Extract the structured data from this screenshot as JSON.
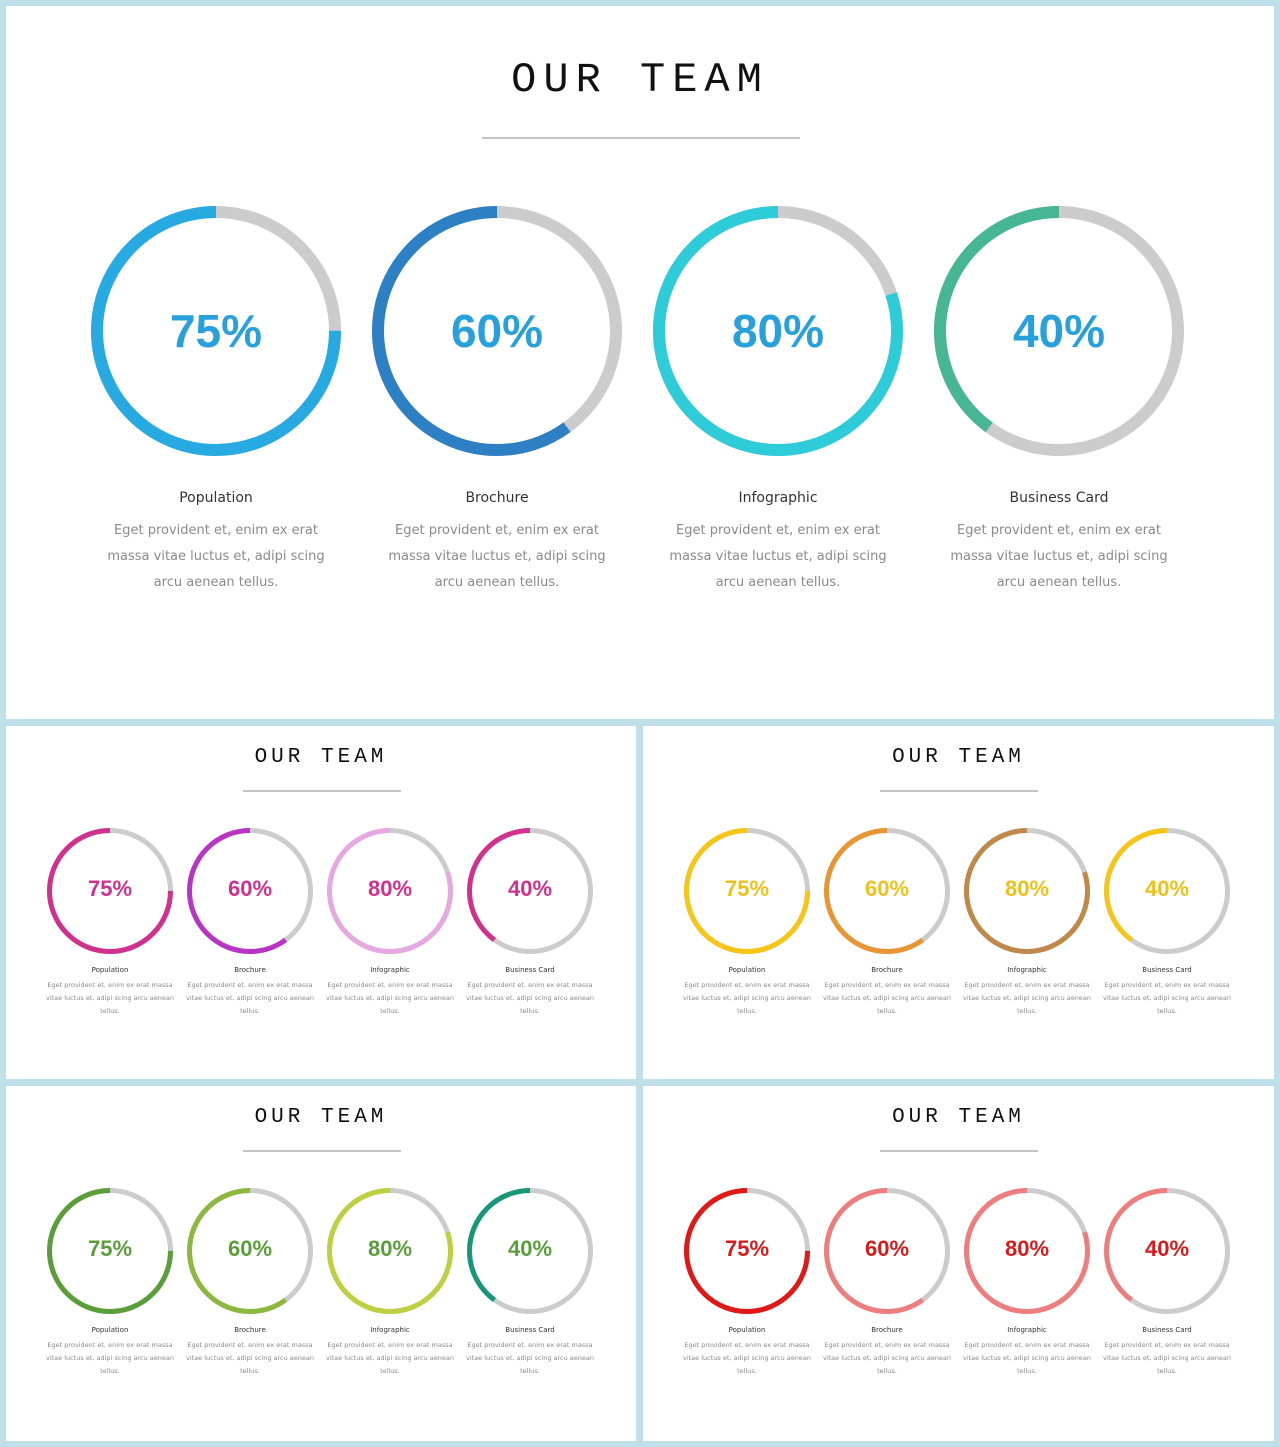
{
  "chart_data": [
    {
      "type": "donut",
      "title": "OUR TEAM",
      "items": [
        {
          "label": "Population",
          "value": 75,
          "value_text": "75%",
          "description": "Eget provident et, enim ex erat massa vitae luctus et, adipi scing arcu aenean tellus.",
          "color": "#27aae1"
        },
        {
          "label": "Brochure",
          "value": 60,
          "value_text": "60%",
          "description": "Eget provident et, enim ex erat massa vitae luctus et, adipi scing arcu aenean tellus.",
          "color": "#2e80c4"
        },
        {
          "label": "Infographic",
          "value": 80,
          "value_text": "80%",
          "description": "Eget provident et, enim ex erat massa vitae luctus et, adipi scing arcu aenean tellus.",
          "color": "#2ecbd9"
        },
        {
          "label": "Business Card",
          "value": 40,
          "value_text": "40%",
          "description": "Eget provident et, enim ex erat massa vitae luctus et, adipi scing arcu aenean tellus.",
          "color": "#47b693"
        }
      ],
      "value_text_color": "#27a0dc",
      "track_color": "#cccccc"
    },
    {
      "type": "donut",
      "title": "OUR TEAM",
      "items": [
        {
          "label": "Population",
          "value": 75,
          "value_text": "75%",
          "description": "Eget provident et, enim ex erat massa vitae luctus et, adipi scing arcu aenean tellus.",
          "color": "#d0308e"
        },
        {
          "label": "Brochure",
          "value": 60,
          "value_text": "60%",
          "description": "Eget provident et, enim ex erat massa vitae luctus et, adipi scing arcu aenean tellus.",
          "color": "#b934c4"
        },
        {
          "label": "Infographic",
          "value": 80,
          "value_text": "80%",
          "description": "Eget provident et, enim ex erat massa vitae luctus et, adipi scing arcu aenean tellus.",
          "color": "#e6a8e2"
        },
        {
          "label": "Business Card",
          "value": 40,
          "value_text": "40%",
          "description": "Eget provident et, enim ex erat massa vitae luctus et, adipi scing arcu aenean tellus.",
          "color": "#d0308e"
        }
      ],
      "value_text_color": "#d0308e",
      "track_color": "#cccccc"
    },
    {
      "type": "donut",
      "title": "OUR TEAM",
      "items": [
        {
          "label": "Population",
          "value": 75,
          "value_text": "75%",
          "description": "Eget provident et, enim ex erat massa vitae luctus et, adipi scing arcu aenean tellus.",
          "color": "#f5c518"
        },
        {
          "label": "Brochure",
          "value": 60,
          "value_text": "60%",
          "description": "Eget provident et, enim ex erat massa vitae luctus et, adipi scing arcu aenean tellus.",
          "color": "#ea9533"
        },
        {
          "label": "Infographic",
          "value": 80,
          "value_text": "80%",
          "description": "Eget provident et, enim ex erat massa vitae luctus et, adipi scing arcu aenean tellus.",
          "color": "#c0894a"
        },
        {
          "label": "Business Card",
          "value": 40,
          "value_text": "40%",
          "description": "Eget provident et, enim ex erat massa vitae luctus et, adipi scing arcu aenean tellus.",
          "color": "#f5c518"
        }
      ],
      "value_text_color": "#f0c01a",
      "track_color": "#cccccc"
    },
    {
      "type": "donut",
      "title": "OUR TEAM",
      "items": [
        {
          "label": "Population",
          "value": 75,
          "value_text": "75%",
          "description": "Eget provident et, enim ex erat massa vitae luctus et, adipi scing arcu aenean tellus.",
          "color": "#5a9e3a"
        },
        {
          "label": "Brochure",
          "value": 60,
          "value_text": "60%",
          "description": "Eget provident et, enim ex erat massa vitae luctus et, adipi scing arcu aenean tellus.",
          "color": "#8cb83e"
        },
        {
          "label": "Infographic",
          "value": 80,
          "value_text": "80%",
          "description": "Eget provident et, enim ex erat massa vitae luctus et, adipi scing arcu aenean tellus.",
          "color": "#bed03f"
        },
        {
          "label": "Business Card",
          "value": 40,
          "value_text": "40%",
          "description": "Eget provident et, enim ex erat massa vitae luctus et, adipi scing arcu aenean tellus.",
          "color": "#16967a"
        }
      ],
      "value_text_color": "#5a9e3a",
      "track_color": "#cccccc"
    },
    {
      "type": "donut",
      "title": "OUR TEAM",
      "items": [
        {
          "label": "Population",
          "value": 75,
          "value_text": "75%",
          "description": "Eget provident et, enim ex erat massa vitae luctus et, adipi scing arcu aenean tellus.",
          "color": "#e01818"
        },
        {
          "label": "Brochure",
          "value": 60,
          "value_text": "60%",
          "description": "Eget provident et, enim ex erat massa vitae luctus et, adipi scing arcu aenean tellus.",
          "color": "#ee7e7e"
        },
        {
          "label": "Infographic",
          "value": 80,
          "value_text": "80%",
          "description": "Eget provident et, enim ex erat massa vitae luctus et, adipi scing arcu aenean tellus.",
          "color": "#ee7e7e"
        },
        {
          "label": "Business Card",
          "value": 40,
          "value_text": "40%",
          "description": "Eget provident et, enim ex erat massa vitae luctus et, adipi scing arcu aenean tellus.",
          "color": "#ee7e7e"
        }
      ],
      "value_text_color": "#d81a1a",
      "track_color": "#cccccc"
    }
  ]
}
